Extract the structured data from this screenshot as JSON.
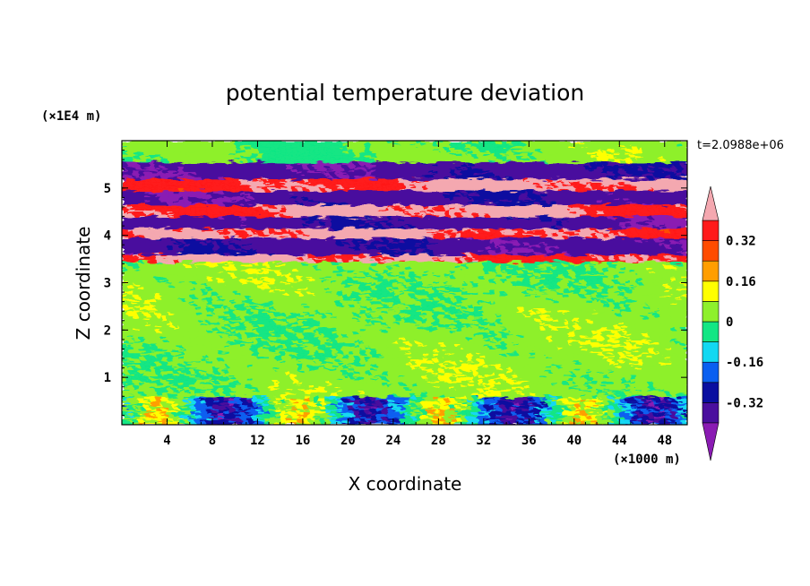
{
  "chart_data": {
    "type": "heatmap",
    "title": "potential temperature deviation",
    "xlabel": "X coordinate",
    "ylabel": "Z coordinate",
    "x_unit": "(×1000 m)",
    "y_unit": "(×1E4 m)",
    "time_label": "t=2.0988e+06",
    "xlim": [
      0,
      50
    ],
    "ylim": [
      0,
      6
    ],
    "x_ticks": [
      4,
      8,
      12,
      16,
      20,
      24,
      28,
      32,
      36,
      40,
      44,
      48
    ],
    "x_tick_labels": [
      "4",
      "8",
      "12",
      "16",
      "20",
      "24",
      "28",
      "32",
      "36",
      "40",
      "44",
      "48"
    ],
    "y_ticks": [
      1,
      2,
      3,
      4,
      5
    ],
    "y_tick_labels": [
      "1",
      "2",
      "3",
      "4",
      "5"
    ],
    "colorbar": {
      "levels": [
        -0.4,
        -0.32,
        -0.24,
        -0.16,
        -0.08,
        0,
        0.08,
        0.16,
        0.24,
        0.32,
        0.4
      ],
      "labels": [
        "0.32",
        "0.16",
        "0",
        "-0.16",
        "-0.32"
      ],
      "label_values": [
        0.32,
        0.16,
        0,
        -0.16,
        -0.32
      ],
      "colors": [
        "#8a1bb3",
        "#4a0f9e",
        "#0a0fa0",
        "#0a5ff0",
        "#12d8f2",
        "#12e684",
        "#8ef02c",
        "#ffff00",
        "#ff9e00",
        "#ff4c00",
        "#ff1a1a",
        "#f4a8b0"
      ],
      "extend": "both"
    },
    "bands": [
      {
        "z_range": [
          5.55,
          6.0
        ],
        "dominant_value": 0.02,
        "description": "green top layer"
      },
      {
        "z_range": [
          5.2,
          5.55
        ],
        "dominant_value": -0.36
      },
      {
        "z_range": [
          4.95,
          5.2
        ],
        "dominant_value": 0.4
      },
      {
        "z_range": [
          4.65,
          4.95
        ],
        "dominant_value": -0.36
      },
      {
        "z_range": [
          4.4,
          4.65
        ],
        "dominant_value": 0.4
      },
      {
        "z_range": [
          4.15,
          4.4
        ],
        "dominant_value": -0.36
      },
      {
        "z_range": [
          3.95,
          4.15
        ],
        "dominant_value": 0.4
      },
      {
        "z_range": [
          3.6,
          3.95
        ],
        "dominant_value": -0.36
      },
      {
        "z_range": [
          3.45,
          3.6
        ],
        "dominant_value": 0.4
      },
      {
        "z_range": [
          0.6,
          3.45
        ],
        "dominant_value": 0.03
      },
      {
        "z_range": [
          0.0,
          0.6
        ],
        "dominant_value": -0.1
      }
    ]
  }
}
